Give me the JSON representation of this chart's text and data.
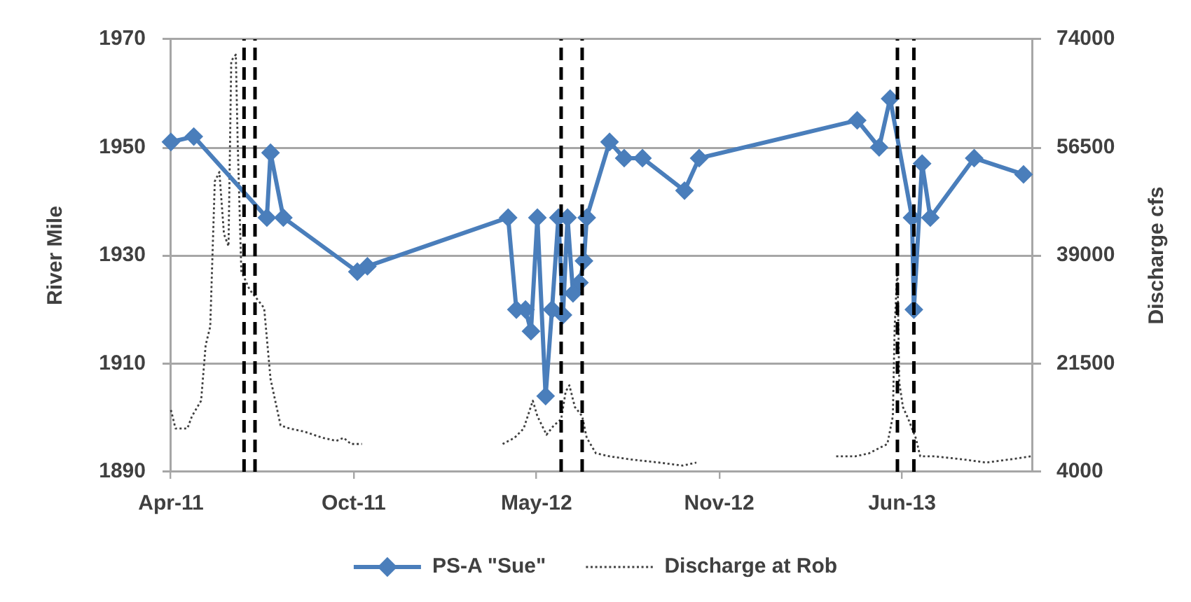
{
  "chart_data": {
    "type": "line",
    "ylabel": "River Mile",
    "y2label": "Discharge cfs",
    "xlim": [
      "2011-04-07",
      "2013-11-05"
    ],
    "xticks": [
      {
        "value": "2011-04-07",
        "label": "Apr-11"
      },
      {
        "value": "2011-10-24",
        "label": "Oct-11"
      },
      {
        "value": "2012-05-11",
        "label": "May-12"
      },
      {
        "value": "2012-11-27",
        "label": "Nov-12"
      },
      {
        "value": "2013-06-15",
        "label": "Jun-13"
      }
    ],
    "ylim": [
      1890,
      1970
    ],
    "yticks": [
      1890,
      1910,
      1930,
      1950,
      1970
    ],
    "y2lim": [
      4000,
      74000
    ],
    "y2ticks": [
      4000,
      21500,
      39000,
      56500,
      74000
    ],
    "grid": "y",
    "legend": "bottom",
    "ref_lines": [
      {
        "axis": "x",
        "value": "2011-06-26",
        "color": "#000000",
        "line_style": "dashed"
      },
      {
        "axis": "x",
        "value": "2011-07-08",
        "color": "#000000",
        "line_style": "dashed"
      },
      {
        "axis": "x",
        "value": "2012-06-07",
        "color": "#000000",
        "line_style": "dashed"
      },
      {
        "axis": "x",
        "value": "2012-06-30",
        "color": "#000000",
        "line_style": "dashed"
      },
      {
        "axis": "x",
        "value": "2013-06-10",
        "color": "#000000",
        "line_style": "dashed"
      },
      {
        "axis": "x",
        "value": "2013-06-28",
        "color": "#000000",
        "line_style": "dashed"
      }
    ],
    "series": [
      {
        "name": "PS-A \"Sue\"",
        "color": "#4a7ebb",
        "marker": "diamond",
        "line_style": "solid",
        "x": [
          "2011-04-07",
          "2011-05-02",
          "2011-07-21",
          "2011-07-25",
          "2011-08-08",
          "2011-10-28",
          "2011-11-08",
          "2012-04-10",
          "2012-04-19",
          "2012-04-29",
          "2012-05-05",
          "2012-05-12",
          "2012-05-21",
          "2012-05-28",
          "2012-06-04",
          "2012-06-09",
          "2012-06-14",
          "2012-06-20",
          "2012-06-27",
          "2012-07-02",
          "2012-07-05",
          "2012-07-30",
          "2012-08-15",
          "2012-09-04",
          "2012-10-20",
          "2012-11-05",
          "2013-04-27",
          "2013-05-21",
          "2013-06-02",
          "2013-06-26",
          "2013-06-28",
          "2013-07-07",
          "2013-07-16",
          "2013-09-02",
          "2013-10-26"
        ],
        "values": [
          1951,
          1952,
          1937,
          1949,
          1937,
          1927,
          1928,
          1937,
          1920,
          1920,
          1916,
          1937,
          1904,
          1920,
          1937,
          1919,
          1937,
          1923,
          1925,
          1929,
          1937,
          1951,
          1948,
          1948,
          1942,
          1948,
          1955,
          1950,
          1959,
          1937,
          1920,
          1947,
          1937,
          1948,
          1945
        ]
      },
      {
        "name": "Discharge at Rob",
        "color": "#404040",
        "marker": "none",
        "line_style": "dotted",
        "axis": "y2",
        "x": [
          "2011-04-07",
          "2011-04-12",
          "2011-04-25",
          "2011-04-30",
          "2011-05-10",
          "2011-05-15",
          "2011-05-20",
          "2011-05-25",
          "2011-05-30",
          "2011-06-04",
          "2011-06-09",
          "2011-06-12",
          "2011-06-17",
          "2011-06-19",
          "2011-06-23",
          "2011-07-02",
          "2011-07-18",
          "2011-07-25",
          "2011-08-05",
          "2011-08-15",
          "2011-08-31",
          "2011-09-20",
          "2011-10-05",
          "2011-10-13",
          "2011-10-21",
          "2011-11-02",
          "2012-01-01",
          "2012-04-04",
          "2012-04-17",
          "2012-04-27",
          "2012-05-07",
          "2012-05-12",
          "2012-05-22",
          "2012-05-30",
          "2012-06-07",
          "2012-06-12",
          "2012-06-16",
          "2012-06-22",
          "2012-06-30",
          "2012-07-05",
          "2012-07-15",
          "2012-07-30",
          "2012-08-22",
          "2012-09-22",
          "2012-10-18",
          "2012-11-02",
          "2013-01-01",
          "2013-04-04",
          "2013-04-25",
          "2013-05-10",
          "2013-05-30",
          "2013-06-05",
          "2013-06-07",
          "2013-06-10",
          "2013-06-12",
          "2013-06-16",
          "2013-06-22",
          "2013-06-30",
          "2013-07-05",
          "2013-07-21",
          "2013-08-21",
          "2013-09-15",
          "2013-10-11",
          "2013-11-03"
        ],
        "values": [
          14000,
          11000,
          11000,
          13000,
          15500,
          24500,
          27500,
          51000,
          52500,
          42500,
          40500,
          70500,
          71500,
          57500,
          36500,
          33500,
          30500,
          19000,
          11500,
          11000,
          10500,
          9500,
          9000,
          9500,
          8500,
          8500,
          null,
          8500,
          9500,
          11000,
          15500,
          13000,
          10000,
          11500,
          12500,
          17000,
          18000,
          14500,
          13000,
          9500,
          7000,
          6500,
          6000,
          5500,
          5000,
          5500,
          null,
          6500,
          6500,
          7000,
          8500,
          13000,
          27500,
          37000,
          18500,
          14500,
          12500,
          9500,
          6500,
          6500,
          6000,
          5500,
          6000,
          6500
        ]
      }
    ]
  }
}
